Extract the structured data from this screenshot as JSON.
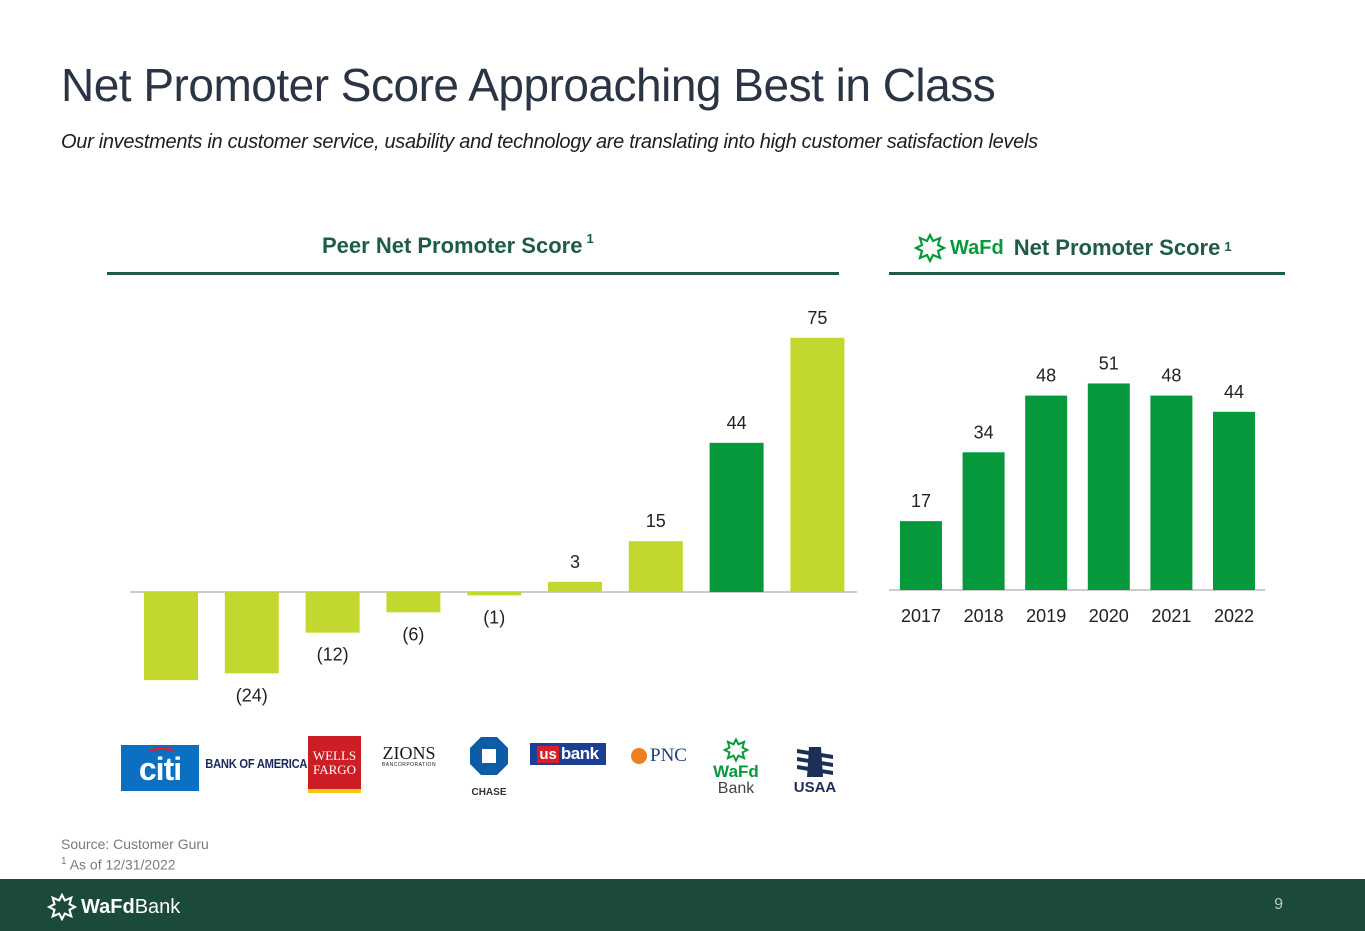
{
  "title": "Net Promoter Score Approaching Best in Class",
  "subtitle": "Our investments in customer service, usability and technology are translating into high customer satisfaction levels",
  "left_section": {
    "heading": "Peer Net Promoter Score",
    "footnote_mark": "1"
  },
  "right_section": {
    "brand": "WaFd",
    "heading": "Net Promoter Score",
    "footnote_mark": "1"
  },
  "colors": {
    "lime": "#c2d82e",
    "green": "#06993b",
    "dark_green": "#1b4a3a",
    "heading_green": "#1f5c46"
  },
  "chart_data": [
    {
      "type": "bar",
      "title": "Peer Net Promoter Score",
      "categories": [
        "Citi",
        "Bank of America",
        "Wells Fargo",
        "Zions Bancorporation",
        "Chase",
        "U.S. Bank",
        "PNC",
        "WaFd Bank",
        "USAA"
      ],
      "values": [
        -26,
        -24,
        -12,
        -6,
        -1,
        3,
        15,
        44,
        75
      ],
      "data_labels": [
        "",
        "(24)",
        "(12)",
        "(6)",
        "(1)",
        "3",
        "15",
        "44",
        "75"
      ],
      "highlight_index": 7,
      "ylim": [
        -41,
        75
      ]
    },
    {
      "type": "bar",
      "title": "WaFd Net Promoter Score",
      "categories": [
        "2017",
        "2018",
        "2019",
        "2020",
        "2021",
        "2022"
      ],
      "values": [
        17,
        34,
        48,
        51,
        48,
        44
      ],
      "data_labels": [
        "17",
        "34",
        "48",
        "51",
        "48",
        "44"
      ],
      "ylim": [
        0,
        51
      ]
    }
  ],
  "logos": {
    "citi": "citi",
    "boa": "BANK OF AMERICA",
    "wells_line1": "WELLS",
    "wells_line2": "FARGO",
    "zions": "ZIONS",
    "zions_sub": "BANCORPORATION",
    "chase": "CHASE",
    "usbank_us": "us",
    "usbank_bank": "bank",
    "pnc": "PNC",
    "wafd_line1": "WaFd",
    "wafd_line2": "Bank",
    "usaa": "USAA"
  },
  "source": "Source: Customer Guru",
  "footnote": {
    "mark": "1",
    "text": "As of 12/31/2022"
  },
  "footer": {
    "brand_bold": "WaFd",
    "brand_light": "Bank",
    "page": "9"
  }
}
